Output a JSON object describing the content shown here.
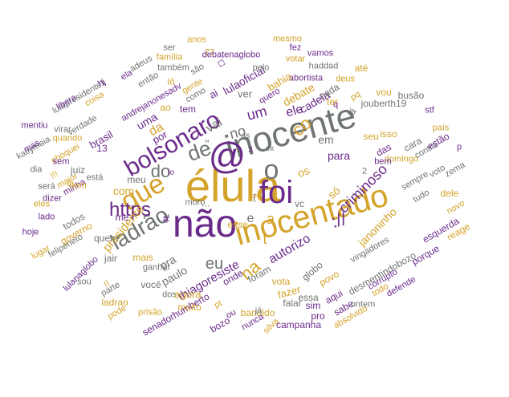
{
  "palette": {
    "gold": "#d4a32a",
    "purple": "#6a2a8a",
    "gray": "#6f7570"
  },
  "words": [
    {
      "text": "élula",
      "color": "gold"
    },
    {
      "text": "não",
      "color": "purple"
    },
    {
      "text": "inocente",
      "color": "gray"
    },
    {
      "text": "inocentado",
      "color": "gold"
    },
    {
      "text": "foi",
      "color": "purple"
    },
    {
      "text": "@",
      "color": "purple"
    },
    {
      "text": "o",
      "color": "gray"
    },
    {
      "text": "bolsonaro",
      "color": "purple"
    },
    {
      "text": "que",
      "color": "gold"
    },
    {
      "text": "de",
      "color": "gray"
    },
    {
      "text": "ladrão",
      "color": "gray"
    },
    {
      "text": "https",
      "color": "purple"
    },
    {
      "text": "do",
      "color": "gray"
    },
    {
      "text": "na",
      "color": "gold"
    },
    {
      "text": "eu",
      "color": "gray"
    },
    {
      "text": "://",
      "color": "purple"
    },
    {
      "text": "a",
      "color": "gold"
    },
    {
      "text": "e",
      "color": "gray"
    },
    {
      "text": "t",
      "color": "gold"
    },
    {
      "text": "co",
      "color": "gold"
    },
    {
      "text": "criminoso",
      "color": "purple"
    },
    {
      "text": "autorizo",
      "color": "purple"
    },
    {
      "text": "thiagoresiste",
      "color": "purple"
    },
    {
      "text": "presidente",
      "color": "gold"
    },
    {
      "text": "janoninho",
      "color": "gold"
    },
    {
      "text": "um",
      "color": "purple"
    },
    {
      "text": "no",
      "color": "gray"
    },
    {
      "text": "vai",
      "color": "gray"
    },
    {
      "text": "da",
      "color": "gold"
    },
    {
      "text": "com",
      "color": "gold"
    },
    {
      "text": "pra",
      "color": "gray"
    },
    {
      "text": "ele",
      "color": "purple"
    },
    {
      "text": "em",
      "color": "gray"
    },
    {
      "text": "para",
      "color": "purple"
    },
    {
      "text": "#",
      "color": "purple"
    },
    {
      "text": "me",
      "color": "purple"
    },
    {
      "text": "paulo",
      "color": "gray"
    },
    {
      "text": "lulaoficial",
      "color": "purple"
    },
    {
      "text": "debatenaglobo",
      "color": "purple"
    },
    {
      "text": "cadeia",
      "color": "purple"
    },
    {
      "text": "debate",
      "color": "gold"
    },
    {
      "text": "uma",
      "color": "purple"
    },
    {
      "text": "por",
      "color": "purple"
    },
    {
      "text": "os",
      "color": "gold"
    },
    {
      "text": "só",
      "color": "gold"
    },
    {
      "text": "vc",
      "color": "gray"
    },
    {
      "text": "jouberth19",
      "color": "gray"
    },
    {
      "text": "andrejanonesadv",
      "color": "purple"
    },
    {
      "text": "lulapresidente1",
      "color": "gray"
    },
    {
      "text": "katiymaia",
      "color": "gray"
    },
    {
      "text": "lulanaglobo",
      "color": "purple"
    },
    {
      "text": "senadorhumberto",
      "color": "purple"
    },
    {
      "text": "desmentindobozo",
      "color": "gray"
    },
    {
      "text": "vingadores",
      "color": "gray"
    },
    {
      "text": "brasil",
      "color": "purple"
    },
    {
      "text": "juiz",
      "color": "gray"
    },
    {
      "text": "minha",
      "color": "purple"
    },
    {
      "text": "todos",
      "color": "gray"
    },
    {
      "text": "quem",
      "color": "gray"
    },
    {
      "text": "governo",
      "color": "gold"
    },
    {
      "text": "jair",
      "color": "gray"
    },
    {
      "text": "mais",
      "color": "gold"
    },
    {
      "text": "ganhar",
      "color": "gray"
    },
    {
      "text": "você",
      "color": "gray"
    },
    {
      "text": "dos",
      "color": "gray"
    },
    {
      "text": "agora",
      "color": "gold"
    },
    {
      "text": "muito",
      "color": "gold"
    },
    {
      "text": "globo",
      "color": "gray"
    },
    {
      "text": "povo",
      "color": "gold"
    },
    {
      "text": "vota",
      "color": "gold"
    },
    {
      "text": "fazer",
      "color": "gold"
    },
    {
      "text": "bandido",
      "color": "gold"
    },
    {
      "text": "campanha",
      "color": "purple"
    },
    {
      "text": "silva",
      "color": "gold"
    },
    {
      "text": "nunca",
      "color": "purple"
    },
    {
      "text": "bozo",
      "color": "purple"
    },
    {
      "text": "pt",
      "color": "gold"
    },
    {
      "text": "ou",
      "color": "purple"
    },
    {
      "text": "essa",
      "color": "gray"
    },
    {
      "text": "aqui",
      "color": "purple"
    },
    {
      "text": "sim",
      "color": "purple"
    },
    {
      "text": "pro",
      "color": "purple"
    },
    {
      "text": "falar",
      "color": "gray"
    },
    {
      "text": "sabe",
      "color": "purple"
    },
    {
      "text": "ontem",
      "color": "gray"
    },
    {
      "text": "absolvido",
      "color": "gold"
    },
    {
      "text": "todo",
      "color": "gold"
    },
    {
      "text": "corrupto",
      "color": "purple"
    },
    {
      "text": "defende",
      "color": "purple"
    },
    {
      "text": "porque",
      "color": "purple"
    },
    {
      "text": "reage",
      "color": "gold"
    },
    {
      "text": "esquerda",
      "color": "purple"
    },
    {
      "text": "novo",
      "color": "gold"
    },
    {
      "text": "dele",
      "color": "gold"
    },
    {
      "text": "tudo",
      "color": "gray"
    },
    {
      "text": "sempre",
      "color": "gray"
    },
    {
      "text": "voto",
      "color": "gray"
    },
    {
      "text": "zema",
      "color": "gray"
    },
    {
      "text": "contra",
      "color": "gray"
    },
    {
      "text": "p",
      "color": "purple"
    },
    {
      "text": "estão",
      "color": "purple"
    },
    {
      "text": "país",
      "color": "gold"
    },
    {
      "text": "stf",
      "color": "purple"
    },
    {
      "text": "cara",
      "color": "gray"
    },
    {
      "text": "domingo",
      "color": "gold"
    },
    {
      "text": "das",
      "color": "purple"
    },
    {
      "text": "seu",
      "color": "gold"
    },
    {
      "text": "isso",
      "color": "gold"
    },
    {
      "text": "bem",
      "color": "purple"
    },
    {
      "text": "2",
      "color": "gray"
    },
    {
      "text": "q",
      "color": "purple"
    },
    {
      "text": "tá",
      "color": "gray"
    },
    {
      "text": "pq",
      "color": "gold"
    },
    {
      "text": "vou",
      "color": "gold"
    },
    {
      "text": "busão",
      "color": "gray"
    },
    {
      "text": "deus",
      "color": "gold"
    },
    {
      "text": "até",
      "color": "gold"
    },
    {
      "text": "abortista",
      "color": "purple"
    },
    {
      "text": "haddad",
      "color": "gray"
    },
    {
      "text": "nada",
      "color": "gray"
    },
    {
      "text": "ter",
      "color": "gold"
    },
    {
      "text": "vamos",
      "color": "purple"
    },
    {
      "text": "votar",
      "color": "gold"
    },
    {
      "text": "fez",
      "color": "purple"
    },
    {
      "text": "mesmo",
      "color": "gold"
    },
    {
      "text": "bahia",
      "color": "gold"
    },
    {
      "text": "quero",
      "color": "purple"
    },
    {
      "text": "pelo",
      "color": "gray"
    },
    {
      "text": "ver",
      "color": "gray"
    },
    {
      "text": "ai",
      "color": "purple"
    },
    {
      "text": "como",
      "color": "gray"
    },
    {
      "text": "tem",
      "color": "purple"
    },
    {
      "text": "ao",
      "color": "gold"
    },
    {
      "text": "são",
      "color": "gray"
    },
    {
      "text": "◻",
      "color": "purple"
    },
    {
      "text": "gente",
      "color": "gold"
    },
    {
      "text": "tô",
      "color": "gold"
    },
    {
      "text": "77",
      "color": "gold"
    },
    {
      "text": "anos",
      "color": "gold"
    },
    {
      "text": "ser",
      "color": "gray"
    },
    {
      "text": "família",
      "color": "gold"
    },
    {
      "text": "também",
      "color": "gray"
    },
    {
      "text": "então",
      "color": "gray"
    },
    {
      "text": "adeus",
      "color": "gray"
    },
    {
      "text": "ela",
      "color": "purple"
    },
    {
      "text": "hj",
      "color": "purple"
    },
    {
      "text": "libera",
      "color": "purple"
    },
    {
      "text": "coisa",
      "color": "gold"
    },
    {
      "text": "verdade",
      "color": "gray"
    },
    {
      "text": "mentiu",
      "color": "purple"
    },
    {
      "text": "mas",
      "color": "purple"
    },
    {
      "text": "virar",
      "color": "gray"
    },
    {
      "text": "quando",
      "color": "gold"
    },
    {
      "text": "choquei",
      "color": "gold"
    },
    {
      "text": "dia",
      "color": "gray"
    },
    {
      "text": "sem",
      "color": "purple"
    },
    {
      "text": "!!!",
      "color": "gold"
    },
    {
      "text": "será",
      "color": "gray"
    },
    {
      "text": "eles",
      "color": "gold"
    },
    {
      "text": "lado",
      "color": "purple"
    },
    {
      "text": "dizer",
      "color": "purple"
    },
    {
      "text": "hoje",
      "color": "purple"
    },
    {
      "text": "lugar",
      "color": "gold"
    },
    {
      "text": "felipeneto",
      "color": "gray"
    },
    {
      "text": "maior",
      "color": "gold"
    },
    {
      "text": "nem",
      "color": "gold"
    },
    {
      "text": "lá",
      "color": "gold"
    },
    {
      "text": "está",
      "color": "gray"
    },
    {
      "text": "13",
      "color": "purple"
    },
    {
      "text": "meu",
      "color": "gray"
    },
    {
      "text": "sou",
      "color": "gray"
    },
    {
      "text": "!!",
      "color": "gold"
    },
    {
      "text": "parte",
      "color": "gray"
    },
    {
      "text": "ladrao",
      "color": "gold"
    },
    {
      "text": "pode",
      "color": "gold"
    },
    {
      "text": "prisão",
      "color": "gold"
    },
    {
      "text": "onde",
      "color": "purple"
    },
    {
      "text": "foram",
      "color": "gray"
    },
    {
      "text": "já",
      "color": "gray"
    },
    {
      "text": "esse",
      "color": "gold"
    },
    {
      "text": "moro",
      "color": "gray"
    },
    {
      "text": "…",
      "color": "gray"
    },
    {
      "text": "ex",
      "color": "gray"
    },
    {
      "text": "3",
      "color": "purple"
    },
    {
      "text": "lo",
      "color": "purple"
    },
    {
      "text": "\"",
      "color": "gray"
    },
    {
      "text": "as",
      "color": "gray"
    },
    {
      "text": "?",
      "color": "gold"
    },
    {
      "text": "(",
      "color": "gray"
    }
  ]
}
